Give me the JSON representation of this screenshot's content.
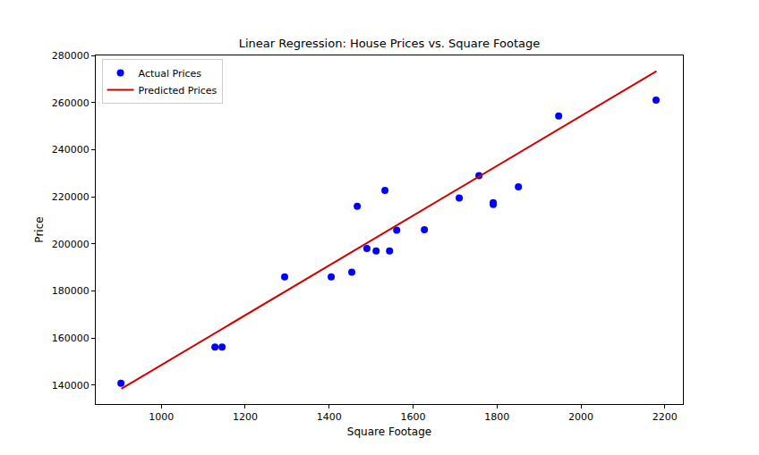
{
  "chart_data": {
    "type": "scatter",
    "title": "Linear Regression: House Prices vs. Square Footage",
    "x_label": "Square Footage",
    "y_label": "Price",
    "xlim": [
      844,
      2243
    ],
    "ylim": [
      132000,
      280000
    ],
    "xticks": [
      1000,
      1200,
      1400,
      1600,
      1800,
      2000,
      2200
    ],
    "yticks": [
      140000,
      160000,
      180000,
      200000,
      220000,
      240000,
      260000,
      280000
    ],
    "grid": false,
    "legend": "upper left",
    "series": [
      {
        "name": "Actual Prices",
        "type": "scatter",
        "marker": "circle",
        "color": "#0000ff",
        "x": [
          904,
          1128,
          1145,
          1294,
          1405,
          1454,
          1467,
          1490,
          1512,
          1544,
          1533,
          1561,
          1627,
          1710,
          1757,
          1791,
          1791,
          1851,
          1947,
          2179
        ],
        "values": [
          140800,
          156200,
          156200,
          186000,
          186000,
          188000,
          216000,
          198000,
          197000,
          197000,
          222700,
          205800,
          206000,
          219500,
          229000,
          217500,
          216700,
          224200,
          254300,
          261000
        ]
      },
      {
        "name": "Predicted Prices",
        "type": "line",
        "line_style": "solid",
        "color": "#d40000",
        "x": [
          905,
          2180
        ],
        "values": [
          138500,
          273300
        ]
      }
    ]
  }
}
